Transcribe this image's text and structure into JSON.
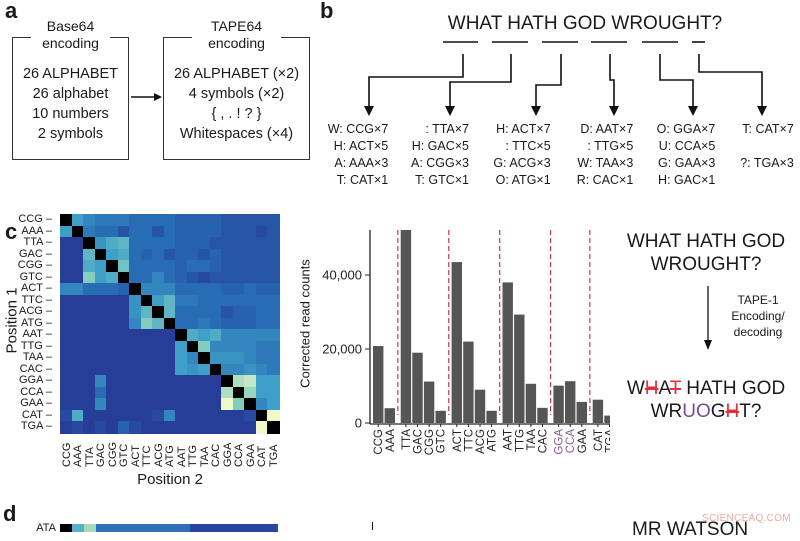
{
  "panel_a": {
    "label": "a",
    "base64": {
      "title": [
        "Base64",
        "encoding"
      ],
      "lines": [
        "26 ALPHABET",
        "26 alphabet",
        "10 numbers",
        "2 symbols"
      ]
    },
    "tape64": {
      "title": [
        "TAPE64",
        "encoding"
      ],
      "lines": [
        "26 ALPHABET (×2)",
        "4 symbols (×2)",
        "{ , . ! ? }",
        "Whitespaces (×4)"
      ]
    }
  },
  "panel_b": {
    "label": "b",
    "sentence": "WHAT HATH GOD WROUGHT?",
    "columns": [
      [
        "W: CCG×7",
        "H: ACT×5",
        "A: AAA×3",
        "T: CAT×1"
      ],
      [
        ": TTA×7",
        "H: GAC×5",
        "A: CGG×3",
        "T: GTC×1"
      ],
      [
        "H: ACT×7",
        ": TTC×5",
        "G: ACG×3",
        "O: ATG×1"
      ],
      [
        "D: AAT×7",
        ": TTG×5",
        "W: TAA×3",
        "R: CAC×1"
      ],
      [
        "O: GGA×7",
        "U: CCA×5",
        "G: GAA×3",
        "H: GAC×1"
      ],
      [
        "T: CAT×7",
        "",
        "?: TGA×3",
        ""
      ]
    ]
  },
  "panel_c": {
    "label": "c",
    "original": [
      "WHAT HATH GOD",
      "WROUGHT?"
    ],
    "process_label": [
      "TAPE-1",
      "Encoding/",
      "decoding"
    ],
    "decoded": [
      [
        {
          "t": "W",
          "s": ""
        },
        {
          "t": "H",
          "s": "red"
        },
        {
          "t": "A",
          "s": ""
        },
        {
          "t": "T",
          "s": "red"
        },
        {
          "t": " HATH GOD",
          "s": ""
        }
      ],
      [
        {
          "t": "WR",
          "s": ""
        },
        {
          "t": "UO",
          "s": "purple"
        },
        {
          "t": "G",
          "s": ""
        },
        {
          "t": "H",
          "s": "red"
        },
        {
          "t": "T?",
          "s": ""
        }
      ]
    ]
  },
  "panel_d": {
    "label": "d",
    "row_label": "ATA",
    "text_partial": "MR WATSON"
  },
  "watermark": "SCIENCEAQ.COM",
  "chart_data": [
    {
      "type": "heatmap",
      "xlabel": "Position 2",
      "ylabel": "Position 1",
      "rows": [
        "CCG",
        "AAA",
        "TTA",
        "GAC",
        "CGG",
        "GTC",
        "ACT",
        "TTC",
        "ACG",
        "ATG",
        "AAT",
        "TTG",
        "TAA",
        "CAC",
        "GGA",
        "CCA",
        "GAA",
        "CAT",
        "TGA"
      ],
      "cols": [
        "CCG",
        "AAA",
        "TTA",
        "GAC",
        "CGG",
        "GTC",
        "ACT",
        "TTC",
        "ACG",
        "ATG",
        "AAT",
        "TTG",
        "TAA",
        "CAC",
        "GGA",
        "CCA",
        "GAA",
        "CAT",
        "TGA"
      ],
      "colormap": "yellow-green-blue, diagonal black",
      "values": [
        [
          null,
          0.5,
          0.4,
          0.35,
          0.35,
          0.35,
          0.3,
          0.3,
          0.3,
          0.3,
          0.25,
          0.25,
          0.25,
          0.25,
          0.2,
          0.2,
          0.2,
          0.2,
          0.2
        ],
        [
          0.5,
          null,
          0.35,
          0.3,
          0.3,
          0.2,
          0.3,
          0.3,
          0.2,
          0.3,
          0.25,
          0.25,
          0.25,
          0.25,
          0.2,
          0.2,
          0.2,
          0.15,
          0.2
        ],
        [
          0.1,
          0.1,
          null,
          0.45,
          0.55,
          0.6,
          0.3,
          0.3,
          0.3,
          0.3,
          0.25,
          0.25,
          0.25,
          0.2,
          0.2,
          0.2,
          0.2,
          0.2,
          0.2
        ],
        [
          0.1,
          0.1,
          0.6,
          null,
          0.5,
          0.55,
          0.3,
          0.25,
          0.3,
          0.2,
          0.25,
          0.25,
          0.2,
          0.25,
          0.2,
          0.2,
          0.2,
          0.2,
          0.2
        ],
        [
          0.1,
          0.1,
          0.55,
          0.5,
          null,
          0.65,
          0.3,
          0.3,
          0.3,
          0.3,
          0.25,
          0.3,
          0.3,
          0.25,
          0.2,
          0.2,
          0.2,
          0.2,
          0.2
        ],
        [
          0.1,
          0.1,
          0.7,
          0.5,
          0.55,
          null,
          0.3,
          0.3,
          0.4,
          0.3,
          0.25,
          0.2,
          0.15,
          0.2,
          0.2,
          0.2,
          0.2,
          0.2,
          0.2
        ],
        [
          0.4,
          0.4,
          0.3,
          0.3,
          0.3,
          0.25,
          null,
          0.4,
          0.4,
          0.4,
          0.3,
          0.3,
          0.3,
          0.3,
          0.25,
          0.25,
          0.3,
          0.25,
          0.25
        ],
        [
          0.1,
          0.1,
          0.1,
          0.1,
          0.1,
          0.1,
          0.45,
          null,
          0.5,
          0.6,
          0.35,
          0.35,
          0.3,
          0.3,
          0.3,
          0.3,
          0.3,
          0.3,
          0.3
        ],
        [
          0.1,
          0.1,
          0.1,
          0.1,
          0.1,
          0.1,
          0.45,
          0.6,
          null,
          0.6,
          0.3,
          0.3,
          0.3,
          0.3,
          0.2,
          0.25,
          0.25,
          0.3,
          0.3
        ],
        [
          0.1,
          0.1,
          0.1,
          0.1,
          0.1,
          0.1,
          0.4,
          0.7,
          0.6,
          null,
          0.3,
          0.3,
          0.35,
          0.3,
          0.25,
          0.25,
          0.25,
          0.3,
          0.3
        ],
        [
          0.1,
          0.1,
          0.1,
          0.1,
          0.1,
          0.1,
          0.1,
          0.1,
          0.1,
          0.1,
          null,
          0.55,
          0.5,
          0.55,
          0.4,
          0.4,
          0.4,
          0.4,
          0.4
        ],
        [
          0.1,
          0.1,
          0.1,
          0.1,
          0.1,
          0.1,
          0.1,
          0.1,
          0.1,
          0.1,
          0.5,
          null,
          0.7,
          0.4,
          0.4,
          0.4,
          0.4,
          0.35,
          0.35
        ],
        [
          0.1,
          0.1,
          0.1,
          0.1,
          0.1,
          0.1,
          0.1,
          0.1,
          0.1,
          0.1,
          0.5,
          0.4,
          null,
          0.45,
          0.45,
          0.45,
          0.4,
          0.35,
          0.35
        ],
        [
          0.1,
          0.1,
          0.1,
          0.1,
          0.1,
          0.1,
          0.1,
          0.1,
          0.1,
          0.1,
          0.5,
          0.45,
          0.5,
          null,
          0.4,
          0.4,
          0.45,
          0.4,
          0.35
        ],
        [
          0.1,
          0.1,
          0.1,
          0.4,
          0.1,
          0.1,
          0.1,
          0.1,
          0.1,
          0.1,
          0.1,
          0.1,
          0.1,
          0.1,
          null,
          0.8,
          0.85,
          0.5,
          0.5
        ],
        [
          0.1,
          0.1,
          0.1,
          0.3,
          0.1,
          0.1,
          0.1,
          0.1,
          0.1,
          0.1,
          0.1,
          0.1,
          0.1,
          0.1,
          0.8,
          null,
          0.75,
          0.5,
          0.5
        ],
        [
          0.1,
          0.1,
          0.1,
          0.4,
          0.1,
          0.1,
          0.1,
          0.1,
          0.1,
          0.1,
          0.1,
          0.1,
          0.1,
          0.1,
          0.95,
          0.7,
          null,
          0.4,
          0.5
        ],
        [
          0.15,
          0.55,
          0.1,
          0.1,
          0.1,
          0.1,
          0.1,
          0.1,
          0.15,
          0.4,
          0.1,
          0.1,
          0.1,
          0.1,
          0.1,
          0.1,
          0.15,
          null,
          0.95
        ],
        [
          0.1,
          0.15,
          0.1,
          0.15,
          0.1,
          0.25,
          0.15,
          0.1,
          0.1,
          0.1,
          0.1,
          0.1,
          0.1,
          0.1,
          0.1,
          0.1,
          0.1,
          0.95,
          null
        ]
      ]
    },
    {
      "type": "bar",
      "ylabel": "Corrected read counts",
      "ylim": [
        0,
        54000
      ],
      "yticks": [
        "0",
        "20,000",
        "40,000"
      ],
      "ytick_values": [
        0,
        20000,
        40000
      ],
      "categories": [
        "CCG",
        "AAA",
        "TTA",
        "GAC",
        "CGG",
        "GTC",
        "ACT",
        "TTC",
        "ACG",
        "ATG",
        "AAT",
        "TTG",
        "TAA",
        "CAC",
        "GGA",
        "CCA",
        "GAA",
        "CAT",
        "TGA"
      ],
      "values": [
        20800,
        4000,
        54000,
        19000,
        11200,
        3300,
        43500,
        22000,
        9000,
        3300,
        38000,
        29300,
        10600,
        4100,
        10100,
        11300,
        5700,
        6300,
        2000
      ],
      "group_separators_after": [
        "AAA",
        "GTC",
        "ATG",
        "CAC",
        "GAA"
      ],
      "highlighted_categories": [
        "GGA",
        "CCA"
      ],
      "colors": {
        "bar": "#555555",
        "separator": "#c8384a",
        "highlight_label": "#8a5a9a"
      }
    }
  ]
}
